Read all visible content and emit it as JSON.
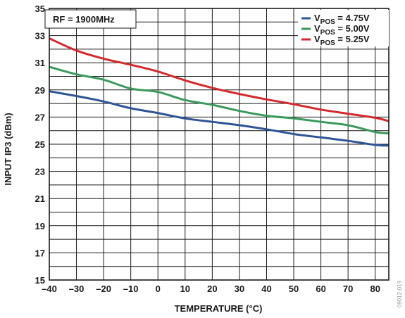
{
  "chart_data": {
    "type": "line",
    "title": "",
    "xlabel": "TEMPERATURE (°C)",
    "ylabel": "INPUT IP3 (dBm)",
    "xlim": [
      -40,
      85
    ],
    "ylim": [
      15,
      35
    ],
    "xticks": [
      -40,
      -30,
      -20,
      -10,
      0,
      10,
      20,
      30,
      40,
      50,
      60,
      70,
      80
    ],
    "yticks": [
      15,
      17,
      19,
      21,
      23,
      25,
      27,
      29,
      31,
      33,
      35
    ],
    "grid": true,
    "legend_position": "top-right",
    "annotation": "RF = 1900MHz",
    "figure_id": "09012-019",
    "x": [
      -40,
      -30,
      -20,
      -10,
      0,
      10,
      20,
      30,
      40,
      50,
      60,
      70,
      80,
      85
    ],
    "series": [
      {
        "name_main": "V",
        "name_sub": "POS",
        "name_rest": " = 4.75V",
        "color": "#2f5597",
        "values": [
          28.9,
          28.55,
          28.15,
          27.65,
          27.3,
          26.9,
          26.65,
          26.4,
          26.1,
          25.75,
          25.5,
          25.25,
          24.95,
          24.9
        ]
      },
      {
        "name_main": "V",
        "name_sub": "POS",
        "name_rest": " = 5.00V",
        "color": "#3a9a5c",
        "values": [
          30.7,
          30.15,
          29.75,
          29.1,
          28.85,
          28.25,
          27.9,
          27.45,
          27.1,
          26.9,
          26.65,
          26.4,
          25.9,
          25.8
        ]
      },
      {
        "name_main": "V",
        "name_sub": "POS",
        "name_rest": " = 5.25V",
        "color": "#d42a2e",
        "values": [
          32.8,
          31.9,
          31.3,
          30.85,
          30.35,
          29.7,
          29.15,
          28.7,
          28.3,
          27.95,
          27.55,
          27.25,
          26.95,
          26.7
        ]
      }
    ]
  }
}
